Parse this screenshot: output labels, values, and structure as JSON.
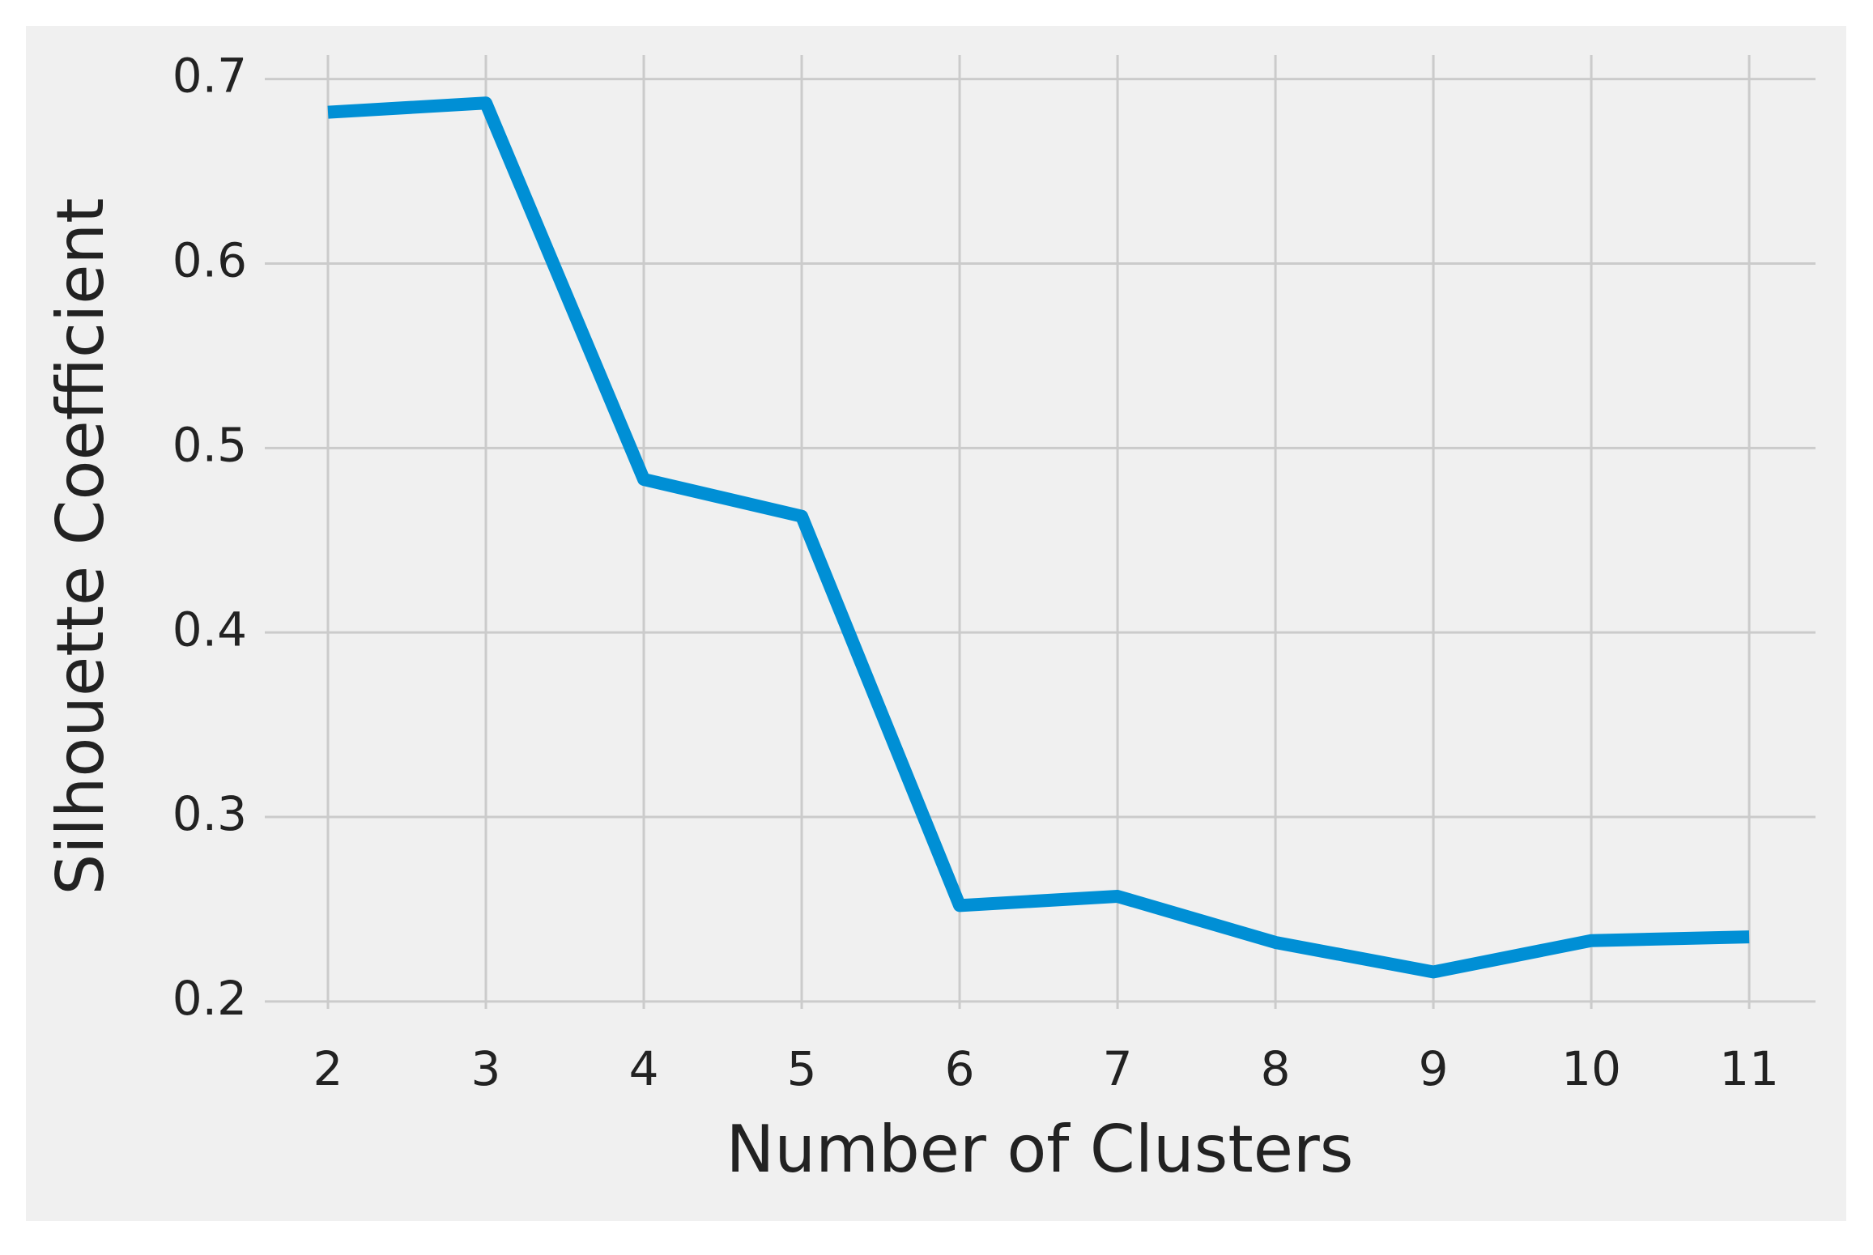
{
  "chart_data": {
    "type": "line",
    "x": [
      2,
      3,
      4,
      5,
      6,
      7,
      8,
      9,
      10,
      11
    ],
    "values": [
      0.682,
      0.687,
      0.483,
      0.463,
      0.252,
      0.257,
      0.232,
      0.216,
      0.233,
      0.235
    ],
    "color": "#008fd5",
    "x_label": "Number of Clusters",
    "y_label": "Silhouette Coefficient",
    "xlim": [
      1.6,
      11.42
    ],
    "ylim": [
      0.196,
      0.713
    ],
    "xticks": [
      2,
      3,
      4,
      5,
      6,
      7,
      8,
      9,
      10,
      11
    ],
    "yticks": [
      0.2,
      0.3,
      0.4,
      0.5,
      0.6,
      0.7
    ],
    "grid": true
  }
}
